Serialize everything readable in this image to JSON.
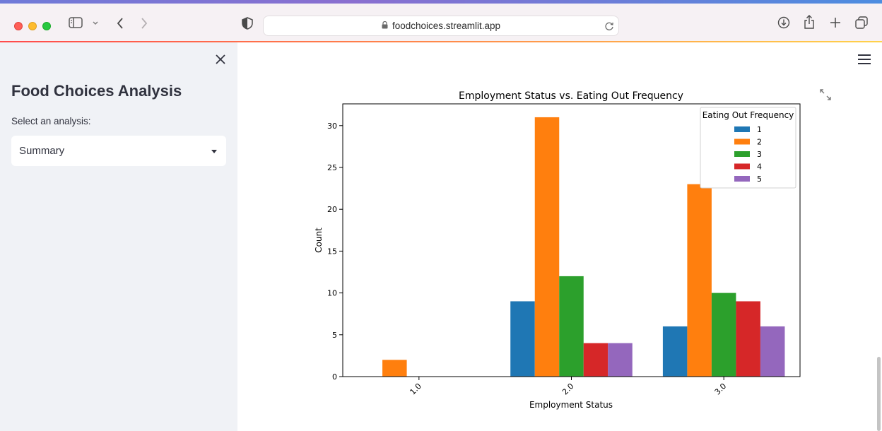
{
  "browser": {
    "url": "foodchoices.streamlit.app"
  },
  "sidebar": {
    "title": "Food Choices Analysis",
    "select_label": "Select an analysis:",
    "select_value": "Summary"
  },
  "chart_data": {
    "type": "bar",
    "title": "Employment Status vs. Eating Out Frequency",
    "xlabel": "Employment Status",
    "ylabel": "Count",
    "categories": [
      "1.0",
      "2.0",
      "3.0"
    ],
    "ylim": [
      0,
      32.6
    ],
    "yticks": [
      0,
      5,
      10,
      15,
      20,
      25,
      30
    ],
    "legend_title": "Eating Out Frequency",
    "legend_position": "top-right",
    "series": [
      {
        "name": "1",
        "color": "#1f77b4",
        "values": [
          0,
          9,
          6
        ]
      },
      {
        "name": "2",
        "color": "#ff7f0e",
        "values": [
          2,
          31,
          23
        ]
      },
      {
        "name": "3",
        "color": "#2ca02c",
        "values": [
          0,
          12,
          10
        ]
      },
      {
        "name": "4",
        "color": "#d62728",
        "values": [
          0,
          4,
          9
        ]
      },
      {
        "name": "5",
        "color": "#9467bd",
        "values": [
          0,
          4,
          6
        ]
      }
    ]
  }
}
